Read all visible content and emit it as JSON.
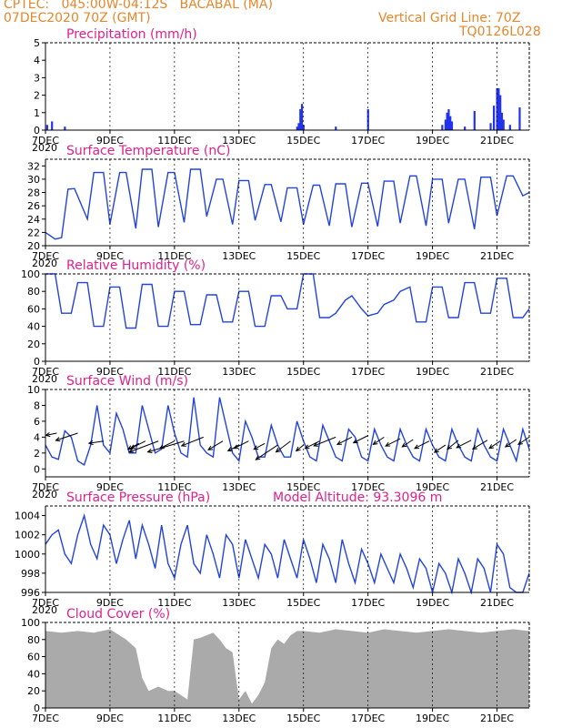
{
  "header": {
    "line1": "CPTEC:   045:00W-04:12S   BACABAL (MA)",
    "line2": "07DEC2020 70Z (GMT)",
    "right1": "Vertical Grid Line: 70Z",
    "right2": "TQ0126L028"
  },
  "x_ticks": [
    "7DEC",
    "9DEC",
    "11DEC",
    "13DEC",
    "15DEC",
    "17DEC",
    "19DEC",
    "21DEC"
  ],
  "x_tick_days": [
    0,
    2,
    4,
    6,
    8,
    10,
    12,
    14
  ],
  "x_tick_fragment": "2020",
  "x_range_days": [
    0,
    15
  ],
  "colors": {
    "header": "#e8862a",
    "title": "#e0208c",
    "line": "#2244dd",
    "bar": "#2233ee",
    "cloud": "#aaaaaa",
    "grid": "#000000"
  },
  "chart_data": [
    {
      "id": "precip",
      "type": "bar",
      "title": "Precipitation (mm/h)",
      "ylim": [
        0,
        5
      ],
      "yticks": [
        0,
        1,
        2,
        3,
        4,
        5
      ],
      "series": [
        {
          "x": [
            0.05,
            0.2,
            0.6,
            7.8,
            7.85,
            7.9,
            7.95,
            8.0,
            9.0,
            10.0,
            12.3,
            12.4,
            12.45,
            12.5,
            12.55,
            12.6,
            13.0,
            13.3,
            13.8,
            13.9,
            14.0,
            14.05,
            14.1,
            14.15,
            14.2,
            14.4,
            14.7
          ],
          "values": [
            0.3,
            0.5,
            0.2,
            0.2,
            0.4,
            1.2,
            1.5,
            0.3,
            0.2,
            1.2,
            0.3,
            0.6,
            1.0,
            1.2,
            0.8,
            0.5,
            0.2,
            1.1,
            0.4,
            1.4,
            2.4,
            2.4,
            2.0,
            1.0,
            0.6,
            0.3,
            1.3
          ]
        }
      ]
    },
    {
      "id": "temp",
      "type": "line",
      "title": "Surface Temperature (nC)",
      "ylim": [
        20,
        33
      ],
      "yticks": [
        20,
        22,
        24,
        26,
        28,
        30,
        32
      ],
      "series": [
        {
          "x": [
            0,
            0.3,
            0.5,
            0.7,
            0.9,
            1.3,
            1.5,
            1.8,
            2.0,
            2.3,
            2.5,
            2.8,
            3.0,
            3.3,
            3.5,
            3.8,
            4.0,
            4.3,
            4.5,
            4.8,
            5.0,
            5.3,
            5.5,
            5.8,
            6.0,
            6.3,
            6.5,
            6.8,
            7.0,
            7.3,
            7.5,
            7.8,
            8.0,
            8.3,
            8.5,
            8.8,
            9.0,
            9.3,
            9.5,
            9.8,
            10.0,
            10.3,
            10.5,
            10.8,
            11.0,
            11.3,
            11.5,
            11.8,
            12.0,
            12.3,
            12.5,
            12.8,
            13.0,
            13.3,
            13.5,
            13.8,
            14.0,
            14.3,
            14.5,
            14.8,
            15.0
          ],
          "values": [
            22,
            21,
            21.2,
            28.5,
            28.6,
            24,
            31,
            31,
            23.2,
            31,
            31,
            22.6,
            31.5,
            31.5,
            22.8,
            31,
            31,
            23.5,
            31.5,
            31.5,
            24.4,
            30,
            30,
            23.2,
            29.8,
            29.8,
            23.8,
            29.2,
            29.2,
            23.6,
            28.7,
            28.7,
            23.2,
            29.1,
            29.1,
            23,
            29.3,
            29.3,
            22.8,
            29.4,
            29.4,
            22.9,
            29.7,
            29.7,
            23.4,
            30.5,
            30.5,
            23.0,
            30.0,
            30.0,
            23.4,
            30.0,
            30.0,
            22.5,
            30.3,
            30.3,
            24.5,
            30.5,
            30.5,
            27.5,
            28
          ]
        }
      ]
    },
    {
      "id": "rh",
      "type": "line",
      "title": "Relative Humidity (%)",
      "ylim": [
        0,
        100
      ],
      "yticks": [
        0,
        20,
        40,
        60,
        80,
        100
      ],
      "series": [
        {
          "x": [
            0,
            0.3,
            0.5,
            0.8,
            1.0,
            1.3,
            1.5,
            1.8,
            2.0,
            2.3,
            2.5,
            2.8,
            3.0,
            3.3,
            3.5,
            3.8,
            4.0,
            4.3,
            4.5,
            4.8,
            5.0,
            5.3,
            5.5,
            5.8,
            6.0,
            6.3,
            6.5,
            6.8,
            7.0,
            7.3,
            7.5,
            7.8,
            8.0,
            8.3,
            8.5,
            8.8,
            9.0,
            9.3,
            9.5,
            9.8,
            10.0,
            10.3,
            10.5,
            10.8,
            11.0,
            11.3,
            11.5,
            11.8,
            12.0,
            12.3,
            12.5,
            12.8,
            13.0,
            13.3,
            13.5,
            13.8,
            14.0,
            14.3,
            14.5,
            14.8,
            15.0
          ],
          "values": [
            100,
            100,
            55,
            55,
            90,
            90,
            40,
            40,
            85,
            85,
            38,
            38,
            88,
            88,
            40,
            40,
            80,
            80,
            42,
            42,
            76,
            76,
            45,
            45,
            80,
            80,
            40,
            40,
            75,
            75,
            60,
            60,
            100,
            100,
            50,
            50,
            55,
            70,
            75,
            60,
            52,
            55,
            65,
            70,
            80,
            85,
            45,
            45,
            85,
            85,
            50,
            50,
            90,
            90,
            55,
            55,
            95,
            95,
            50,
            50,
            60
          ]
        }
      ]
    },
    {
      "id": "wind",
      "type": "line",
      "title": "Surface Wind (m/s)",
      "ylim": [
        -1,
        10
      ],
      "yticks": [
        0,
        2,
        4,
        6,
        8,
        10
      ],
      "series": [
        {
          "x": [
            0,
            0.2,
            0.4,
            0.6,
            0.8,
            1.0,
            1.2,
            1.4,
            1.6,
            1.8,
            2.0,
            2.2,
            2.4,
            2.6,
            2.8,
            3.0,
            3.2,
            3.4,
            3.6,
            3.8,
            4.0,
            4.2,
            4.4,
            4.6,
            4.8,
            5.0,
            5.2,
            5.4,
            5.6,
            5.8,
            6.0,
            6.2,
            6.4,
            6.6,
            6.8,
            7.0,
            7.2,
            7.4,
            7.6,
            7.8,
            8.0,
            8.2,
            8.4,
            8.6,
            8.8,
            9.0,
            9.2,
            9.4,
            9.6,
            9.8,
            10.0,
            10.2,
            10.4,
            10.6,
            10.8,
            11.0,
            11.2,
            11.4,
            11.6,
            11.8,
            12.0,
            12.2,
            12.4,
            12.6,
            12.8,
            13.0,
            13.2,
            13.4,
            13.6,
            13.8,
            14.0,
            14.2,
            14.4,
            14.6,
            14.8,
            15.0
          ],
          "values": [
            3,
            1.5,
            1.2,
            4.8,
            4,
            1,
            0.5,
            3,
            8,
            3,
            2,
            7,
            5,
            2,
            2,
            8,
            5,
            2,
            2.5,
            8,
            4.5,
            2,
            1.5,
            9,
            3,
            2,
            1.5,
            9,
            5.5,
            2,
            1,
            6,
            4,
            1.5,
            1.5,
            5.5,
            3,
            1.5,
            1.5,
            6,
            3.5,
            1.5,
            1,
            5.5,
            3.5,
            1.5,
            1,
            5,
            4,
            1.5,
            1,
            5,
            3,
            1.5,
            1,
            5,
            3,
            1.5,
            1,
            5,
            3,
            1.5,
            1,
            5,
            3,
            1.5,
            1,
            5,
            3,
            1.5,
            1,
            5,
            3,
            1,
            5,
            2.5
          ]
        }
      ],
      "vectors": {
        "x": [
          0.35,
          1.0,
          1.8,
          2.9,
          3.1,
          3.5,
          4.0,
          4.3,
          4.9,
          5.5,
          6.0,
          6.3,
          6.8,
          7.2,
          7.6,
          8.0,
          8.5,
          9.0,
          9.5,
          10.0,
          10.5,
          11.0,
          11.4,
          11.9,
          12.4,
          12.8,
          13.2,
          13.7,
          14.1,
          14.6,
          15.0
        ],
        "u": [
          -1.5,
          -3,
          -2,
          -1.5,
          -2,
          -4,
          -2,
          -5,
          -3,
          -2,
          -1.5,
          -2,
          -1.5,
          -3,
          -2,
          -1,
          -2,
          -3,
          -2,
          -2,
          -1.5,
          -2,
          -1.5,
          -2,
          -1.5,
          -1.5,
          -2,
          -2,
          -1.5,
          -1.5,
          -1.5
        ],
        "v": [
          -0.3,
          -1,
          -0.3,
          -0.8,
          -1,
          -1.5,
          -1,
          -1.5,
          -1.2,
          -1.2,
          -0.8,
          -1,
          -0.8,
          -2,
          -1.5,
          -0.8,
          -1,
          -1.2,
          -1,
          -1,
          -1,
          -1,
          -1,
          -1,
          -1,
          -1.2,
          -1,
          -1.2,
          -1,
          -1,
          -1
        ],
        "y": [
          4.5,
          4.5,
          3.5,
          3.2,
          3.5,
          3.5,
          3.5,
          3.5,
          4,
          3.5,
          3,
          3.5,
          3.2,
          3,
          3.5,
          3,
          3.5,
          4,
          4,
          4.2,
          4,
          3.8,
          3.7,
          3.5,
          3,
          3.6,
          3.6,
          3.6,
          3.5,
          3.7,
          4
        ]
      }
    },
    {
      "id": "pressure",
      "type": "line",
      "title": "Surface Pressure (hPa)",
      "annotation": "Model Altitude: 93.3096 m",
      "ylim": [
        996,
        1005
      ],
      "yticks": [
        996,
        998,
        1000,
        1002,
        1004
      ],
      "series": [
        {
          "x": [
            0,
            0.2,
            0.4,
            0.6,
            0.8,
            1.0,
            1.2,
            1.4,
            1.6,
            1.8,
            2.0,
            2.2,
            2.4,
            2.6,
            2.8,
            3.0,
            3.2,
            3.4,
            3.6,
            3.8,
            4.0,
            4.2,
            4.4,
            4.6,
            4.8,
            5.0,
            5.2,
            5.4,
            5.6,
            5.8,
            6.0,
            6.2,
            6.4,
            6.6,
            6.8,
            7.0,
            7.2,
            7.4,
            7.6,
            7.8,
            8.0,
            8.2,
            8.4,
            8.6,
            8.8,
            9.0,
            9.2,
            9.4,
            9.6,
            9.8,
            10.0,
            10.2,
            10.4,
            10.6,
            10.8,
            11.0,
            11.2,
            11.4,
            11.6,
            11.8,
            12.0,
            12.2,
            12.4,
            12.6,
            12.8,
            13.0,
            13.2,
            13.4,
            13.6,
            13.8,
            14.0,
            14.2,
            14.4,
            14.6,
            14.8,
            15.0
          ],
          "values": [
            1001,
            1002,
            1002.5,
            1000,
            999,
            1002,
            1004,
            1001,
            999.5,
            1003,
            1002,
            999,
            1001.5,
            1003.5,
            999.5,
            1003,
            1001,
            998.5,
            1003,
            999,
            997.5,
            1001,
            1003,
            999,
            998,
            1002,
            1000,
            997.5,
            1002,
            1001,
            997.5,
            1001.5,
            999.5,
            997.5,
            1001,
            1000,
            997.5,
            1001.5,
            999.5,
            997.5,
            1001.5,
            999.5,
            997,
            1001,
            999.5,
            997,
            1001.5,
            999,
            997,
            1000.5,
            999,
            997,
            1000,
            998.5,
            997,
            1000,
            998.5,
            996.5,
            999.5,
            998.5,
            996,
            999,
            998,
            996,
            999.5,
            998,
            996,
            999.5,
            998.5,
            996,
            1001,
            1000,
            996.5,
            996,
            996,
            998
          ]
        }
      ]
    },
    {
      "id": "cloud",
      "type": "area",
      "title": "Cloud Cover (%)",
      "ylim": [
        0,
        100
      ],
      "yticks": [
        0,
        20,
        40,
        60,
        80,
        100
      ],
      "series": [
        {
          "x": [
            0,
            0.5,
            1.0,
            1.5,
            2.0,
            2.5,
            2.8,
            3.0,
            3.2,
            3.5,
            3.8,
            4.0,
            4.2,
            4.4,
            4.6,
            4.8,
            5.0,
            5.2,
            5.4,
            5.6,
            5.8,
            6.0,
            6.2,
            6.4,
            6.6,
            6.8,
            7.0,
            7.2,
            7.4,
            7.6,
            7.8,
            8.0,
            8.5,
            9.0,
            9.5,
            10.0,
            10.5,
            11.0,
            11.5,
            12.0,
            12.5,
            13.0,
            13.5,
            14.0,
            14.5,
            15.0
          ],
          "values": [
            90,
            88,
            90,
            88,
            92,
            80,
            70,
            35,
            20,
            25,
            20,
            20,
            15,
            10,
            80,
            82,
            85,
            88,
            80,
            70,
            65,
            10,
            20,
            5,
            15,
            30,
            70,
            80,
            75,
            85,
            90,
            90,
            88,
            92,
            90,
            88,
            92,
            90,
            88,
            90,
            92,
            90,
            88,
            90,
            92,
            90
          ]
        }
      ]
    }
  ]
}
